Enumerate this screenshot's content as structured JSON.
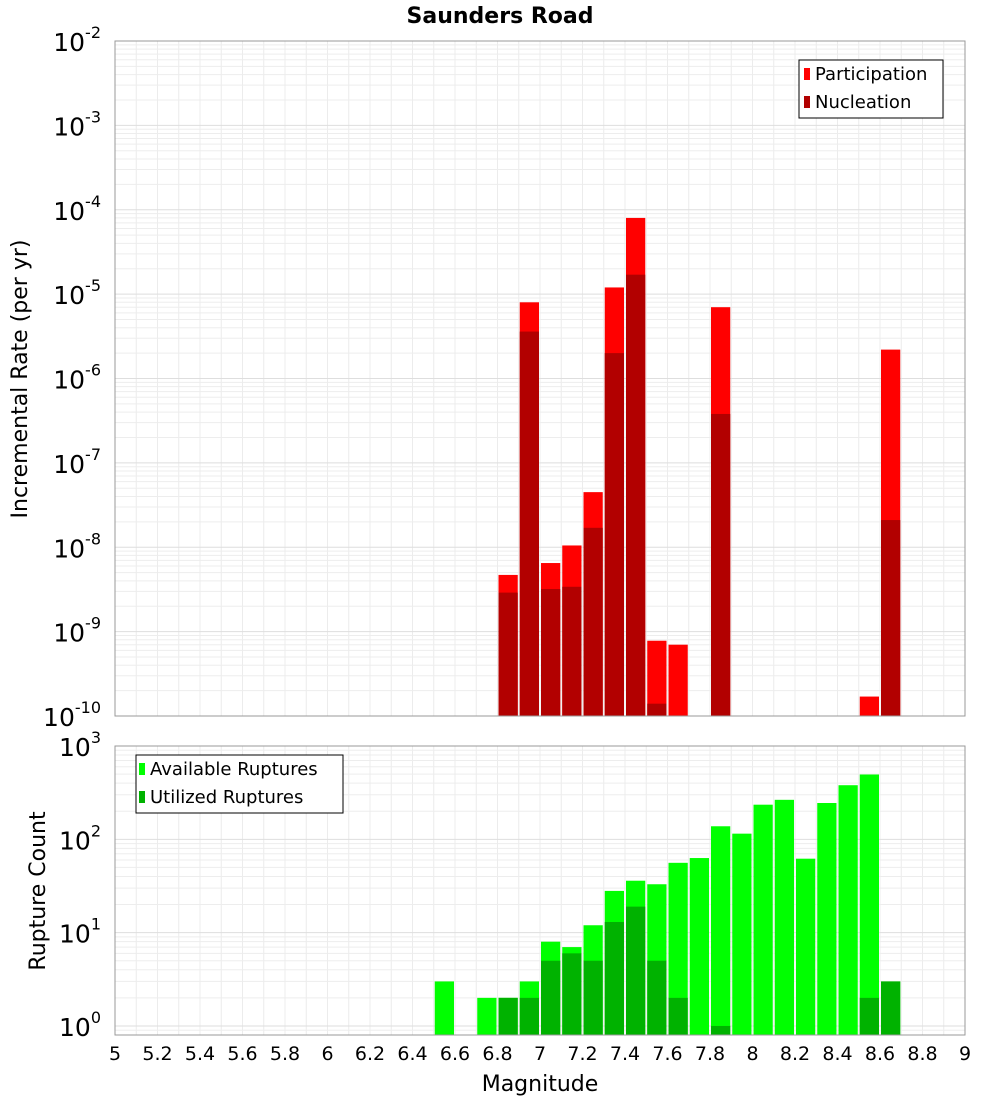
{
  "chart_data": [
    {
      "type": "bar",
      "title": "Saunders Road",
      "xlabel": "",
      "ylabel": "Incremental Rate (per yr)",
      "yscale": "log",
      "xlim": [
        5,
        9
      ],
      "ylim": [
        1e-10,
        0.01
      ],
      "y_tick_labels": [
        {
          "base": "10",
          "exp": "-10"
        },
        {
          "base": "10",
          "exp": "-9"
        },
        {
          "base": "10",
          "exp": "-8"
        },
        {
          "base": "10",
          "exp": "-7"
        },
        {
          "base": "10",
          "exp": "-6"
        },
        {
          "base": "10",
          "exp": "-5"
        },
        {
          "base": "10",
          "exp": "-4"
        },
        {
          "base": "10",
          "exp": "-3"
        },
        {
          "base": "10",
          "exp": "-2"
        }
      ],
      "grid": true,
      "legend_position": "top-right",
      "bar_width": 0.1,
      "series": [
        {
          "name": "Participation",
          "color": "#ff0000",
          "points": [
            {
              "x": 6.85,
              "y": 4.7e-09
            },
            {
              "x": 6.95,
              "y": 8e-06
            },
            {
              "x": 7.05,
              "y": 6.5e-09
            },
            {
              "x": 7.15,
              "y": 1.05e-08
            },
            {
              "x": 7.25,
              "y": 4.5e-08
            },
            {
              "x": 7.35,
              "y": 1.2e-05
            },
            {
              "x": 7.45,
              "y": 8e-05
            },
            {
              "x": 7.55,
              "y": 7.8e-10
            },
            {
              "x": 7.65,
              "y": 7e-10
            },
            {
              "x": 7.85,
              "y": 7e-06
            },
            {
              "x": 8.55,
              "y": 1.7e-10
            },
            {
              "x": 8.65,
              "y": 2.2e-06
            }
          ]
        },
        {
          "name": "Nucleation",
          "color": "#b20000",
          "points": [
            {
              "x": 6.85,
              "y": 2.9e-09
            },
            {
              "x": 6.95,
              "y": 3.6e-06
            },
            {
              "x": 7.05,
              "y": 3.2e-09
            },
            {
              "x": 7.15,
              "y": 3.4e-09
            },
            {
              "x": 7.25,
              "y": 1.7e-08
            },
            {
              "x": 7.35,
              "y": 2e-06
            },
            {
              "x": 7.45,
              "y": 1.7e-05
            },
            {
              "x": 7.55,
              "y": 1.4e-10
            },
            {
              "x": 7.85,
              "y": 3.8e-07
            },
            {
              "x": 8.65,
              "y": 2.1e-08
            }
          ]
        }
      ]
    },
    {
      "type": "bar",
      "title": "",
      "xlabel": "Magnitude",
      "ylabel": "Rupture Count",
      "yscale": "log",
      "xlim": [
        5,
        9
      ],
      "ylim": [
        0.8,
        1000
      ],
      "x_tick_labels": [
        "5",
        "5.2",
        "5.4",
        "5.6",
        "5.8",
        "6",
        "6.2",
        "6.4",
        "6.6",
        "6.8",
        "7",
        "7.2",
        "7.4",
        "7.6",
        "7.8",
        "8",
        "8.2",
        "8.4",
        "8.6",
        "8.8",
        "9"
      ],
      "y_tick_labels": [
        {
          "base": "10",
          "exp": "0"
        },
        {
          "base": "10",
          "exp": "1"
        },
        {
          "base": "10",
          "exp": "2"
        },
        {
          "base": "10",
          "exp": "3"
        }
      ],
      "grid": true,
      "legend_position": "top-left",
      "bar_width": 0.1,
      "series": [
        {
          "name": "Available Ruptures",
          "color": "#00ff00",
          "points": [
            {
              "x": 6.55,
              "y": 3
            },
            {
              "x": 6.75,
              "y": 2
            },
            {
              "x": 6.85,
              "y": 2
            },
            {
              "x": 6.95,
              "y": 3
            },
            {
              "x": 7.05,
              "y": 8
            },
            {
              "x": 7.15,
              "y": 7
            },
            {
              "x": 7.25,
              "y": 12
            },
            {
              "x": 7.35,
              "y": 28
            },
            {
              "x": 7.45,
              "y": 36
            },
            {
              "x": 7.55,
              "y": 33
            },
            {
              "x": 7.65,
              "y": 56
            },
            {
              "x": 7.75,
              "y": 63
            },
            {
              "x": 7.85,
              "y": 138
            },
            {
              "x": 7.95,
              "y": 115
            },
            {
              "x": 8.05,
              "y": 235
            },
            {
              "x": 8.15,
              "y": 265
            },
            {
              "x": 8.25,
              "y": 62
            },
            {
              "x": 8.35,
              "y": 245
            },
            {
              "x": 8.45,
              "y": 380
            },
            {
              "x": 8.55,
              "y": 495
            },
            {
              "x": 8.65,
              "y": 3
            }
          ]
        },
        {
          "name": "Utilized Ruptures",
          "color": "#00b200",
          "points": [
            {
              "x": 6.85,
              "y": 2
            },
            {
              "x": 6.95,
              "y": 2
            },
            {
              "x": 7.05,
              "y": 5
            },
            {
              "x": 7.15,
              "y": 6
            },
            {
              "x": 7.25,
              "y": 5
            },
            {
              "x": 7.35,
              "y": 13
            },
            {
              "x": 7.45,
              "y": 19
            },
            {
              "x": 7.55,
              "y": 5
            },
            {
              "x": 7.65,
              "y": 2
            },
            {
              "x": 7.85,
              "y": 1
            },
            {
              "x": 8.55,
              "y": 2
            },
            {
              "x": 8.65,
              "y": 3
            }
          ]
        }
      ]
    }
  ]
}
